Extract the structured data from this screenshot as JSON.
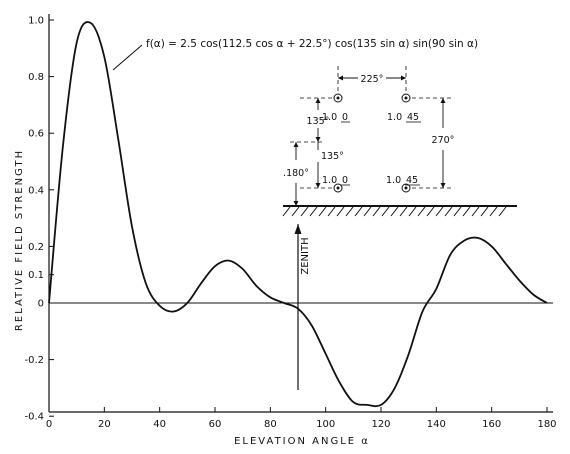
{
  "chart_data": {
    "type": "line",
    "title": "",
    "xlabel": "ELEVATION ANGLE α",
    "ylabel": "RELATIVE FIELD STRENGTH",
    "xlim": [
      0,
      180
    ],
    "ylim": [
      -0.4,
      1.0
    ],
    "x_ticks": [
      0,
      20,
      40,
      60,
      80,
      100,
      120,
      140,
      160,
      180
    ],
    "y_tick_labels": [
      "1.0",
      "0.8",
      "0.6",
      "0.4",
      "0.2",
      "0.1",
      "0",
      "-0.2",
      "-0.4"
    ],
    "y_tick_values": [
      1.0,
      0.8,
      0.6,
      0.4,
      0.2,
      0.1,
      0,
      -0.2,
      -0.4
    ],
    "grid": false,
    "formula": "f(α) = 2.5 cos(112.5 cos α + 22.5°) cos(135 sin α) sin(90 sin α)",
    "zenith_label": "ZENITH",
    "zenith_x": 90,
    "series": [
      {
        "x": [
          0,
          5,
          10,
          15,
          20,
          25,
          30,
          35,
          40,
          45,
          50,
          55,
          60,
          65,
          70,
          75,
          80,
          85,
          90,
          95,
          100,
          105,
          110,
          115,
          120,
          125,
          130,
          135,
          140,
          145,
          150,
          155,
          160,
          165,
          170,
          175,
          180
        ],
        "values": [
          0,
          0.55,
          0.92,
          0.99,
          0.87,
          0.58,
          0.27,
          0.07,
          -0.01,
          -0.03,
          0.0,
          0.07,
          0.13,
          0.15,
          0.12,
          0.06,
          0.02,
          0.0,
          -0.02,
          -0.08,
          -0.18,
          -0.28,
          -0.35,
          -0.36,
          -0.36,
          -0.3,
          -0.18,
          -0.03,
          0.05,
          0.17,
          0.22,
          0.23,
          0.2,
          0.14,
          0.08,
          0.03,
          0.0
        ]
      }
    ]
  },
  "diagram": {
    "spacing_label": "225°",
    "height_label": "270°",
    "upper_gap_label": "135°",
    "lower_gap_label": "135°",
    "base_height_label": ".180°",
    "elements": [
      {
        "amp": "1.0",
        "phase": "0"
      },
      {
        "amp": "1.0",
        "phase": "45"
      },
      {
        "amp": "1.0",
        "phase": "0"
      },
      {
        "amp": "1.0",
        "phase": "45"
      }
    ]
  }
}
